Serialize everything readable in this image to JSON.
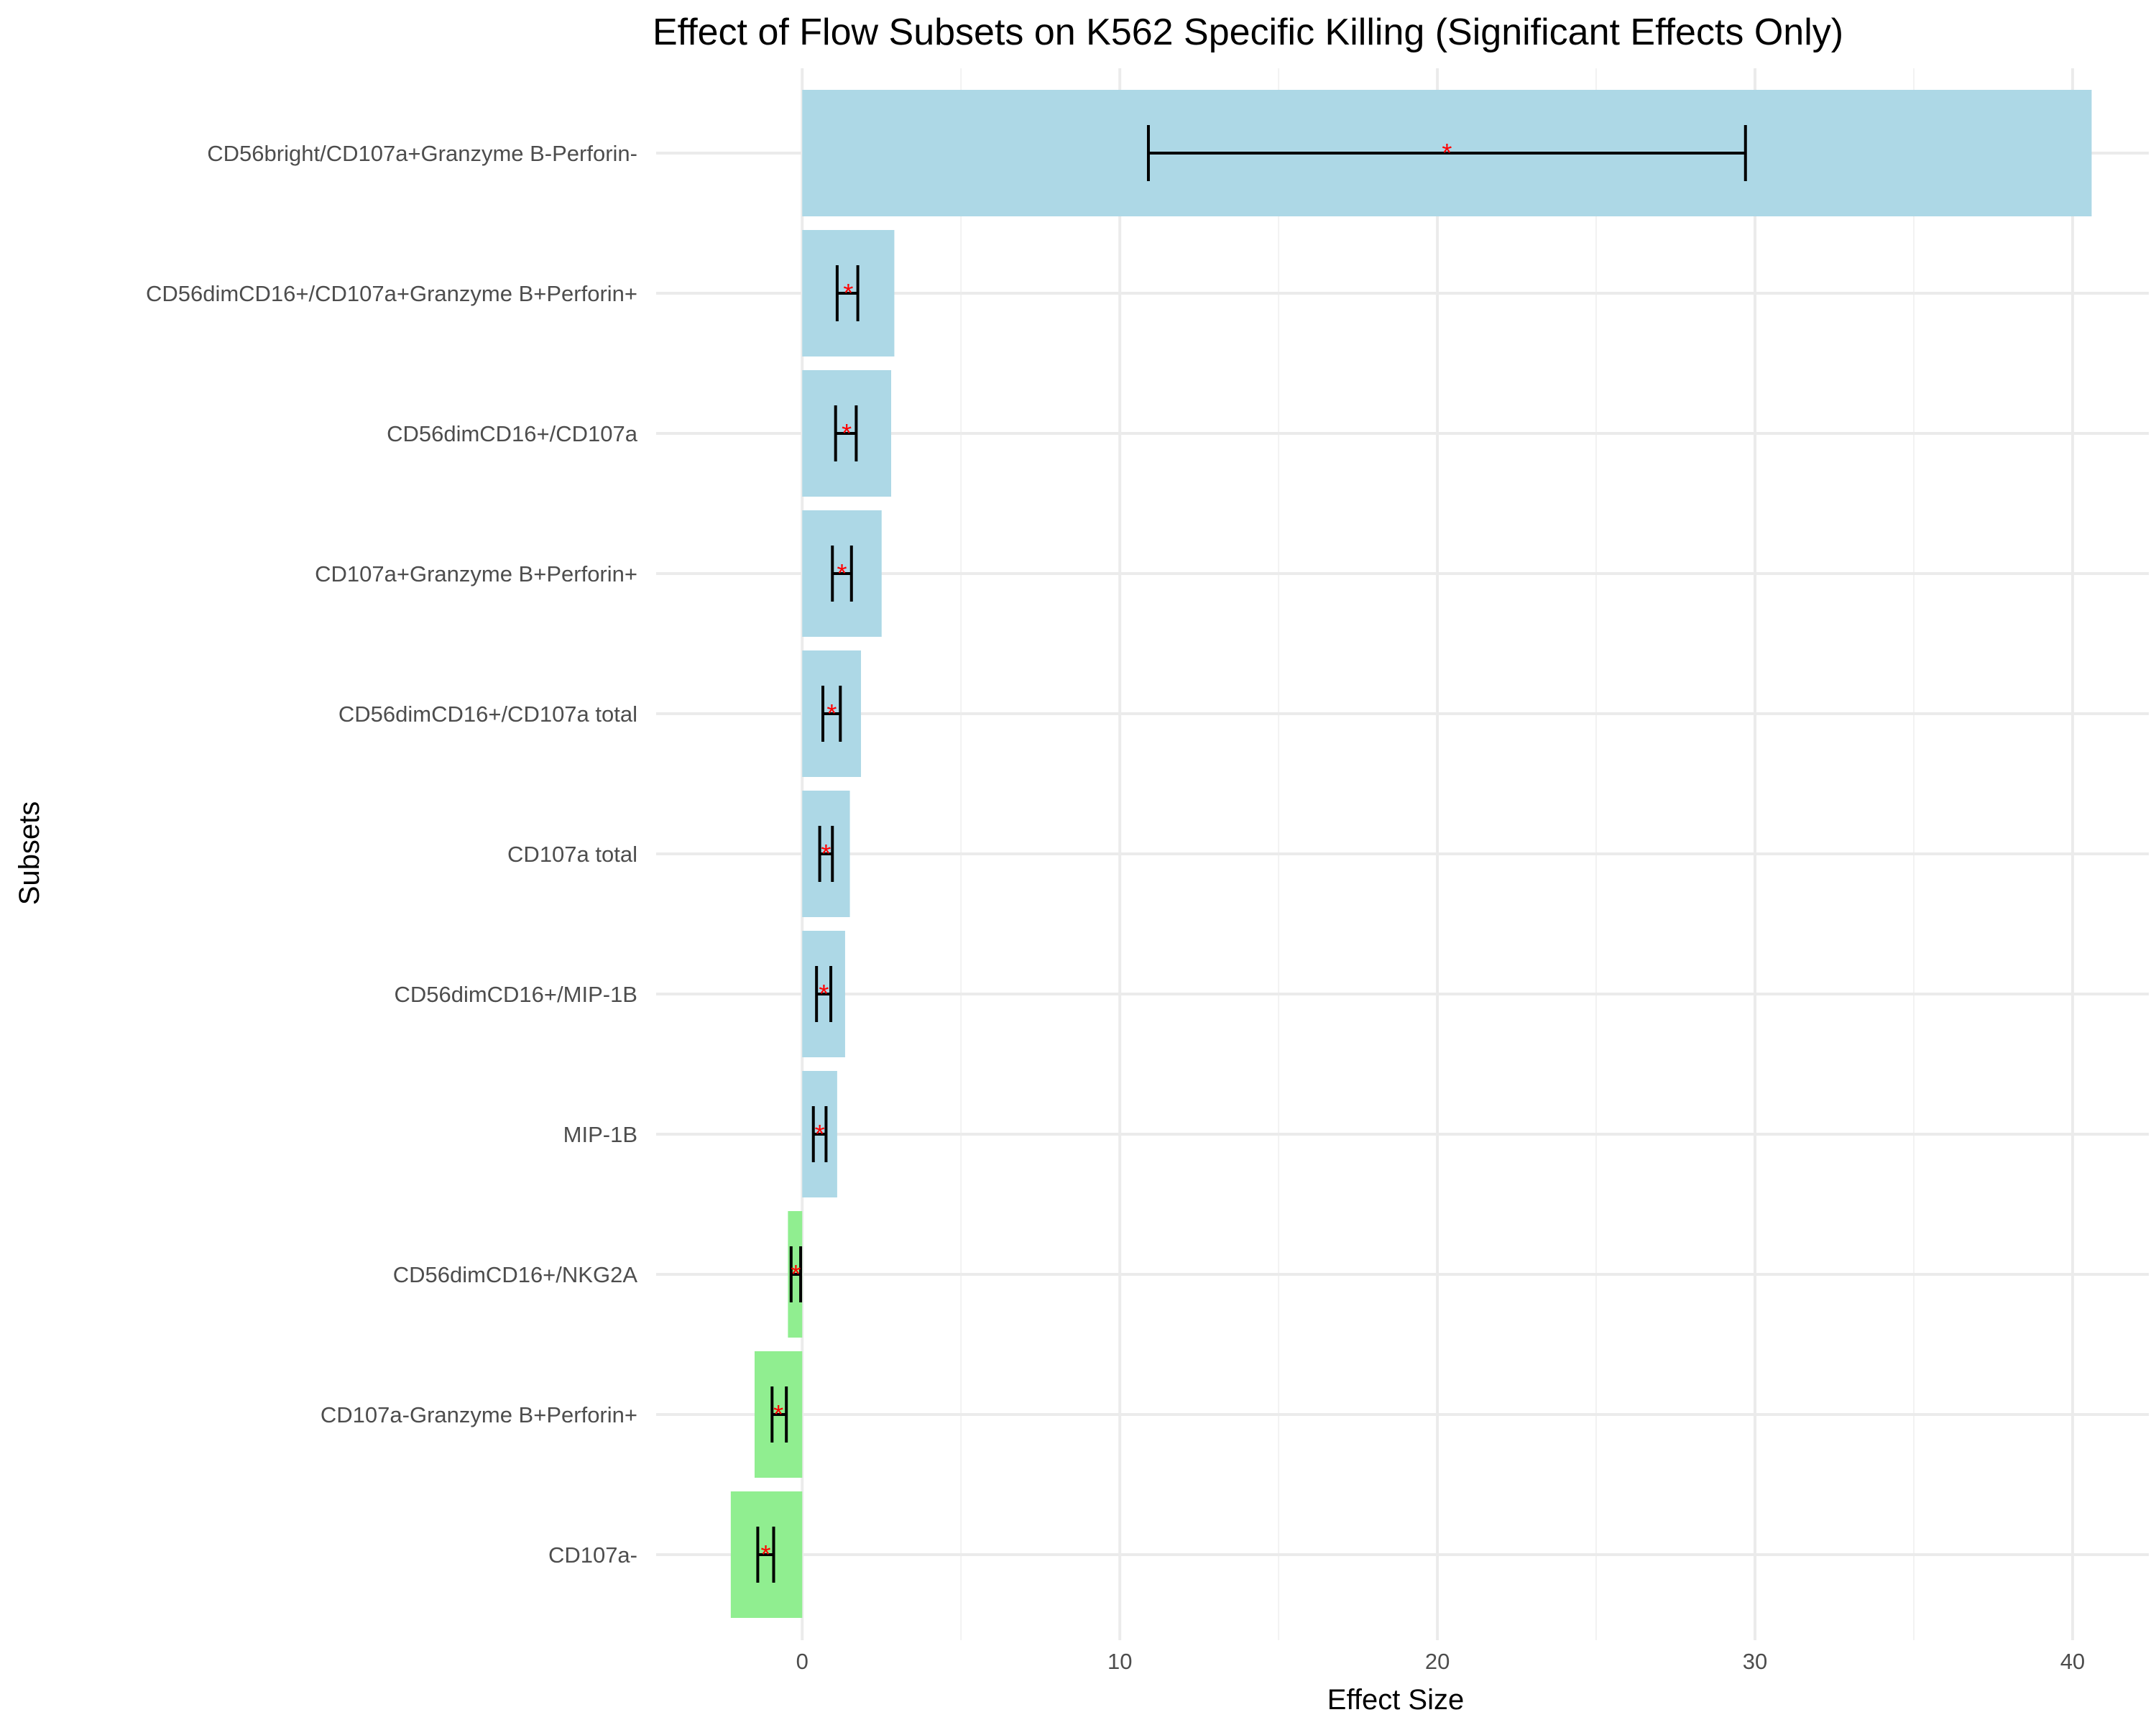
{
  "chart_data": {
    "type": "bar",
    "orientation": "horizontal",
    "title": "Effect of Flow Subsets on K562 Specific Killing (Significant Effects Only)",
    "xlabel": "Effect Size",
    "ylabel": "Subsets",
    "xlim": [
      -4.6,
      42.4
    ],
    "x_ticks": [
      0,
      10,
      20,
      30,
      40
    ],
    "grid": true,
    "legend": "none",
    "colors": {
      "positive": "#add8e6",
      "negative": "#90ee90",
      "errorbar": "#000000",
      "significance": "#ff0000"
    },
    "significance_symbol": "*",
    "categories": [
      "CD56bright/CD107a+Granzyme B-Perforin-",
      "CD56dimCD16+/CD107a+Granzyme B+Perforin+",
      "CD56dimCD16+/CD107a",
      "CD107a+Granzyme B+Perforin+",
      "CD56dimCD16+/CD107a total",
      "CD107a total",
      "CD56dimCD16+/MIP-1B",
      "MIP-1B",
      "CD56dimCD16+/NKG2A",
      "CD107a-Granzyme B+Perforin+",
      "CD107a-"
    ],
    "values": [
      40.6,
      2.9,
      2.8,
      2.5,
      1.85,
      1.5,
      1.35,
      1.1,
      -0.45,
      -1.5,
      -2.25
    ],
    "estimates": [
      20.3,
      1.45,
      1.4,
      1.25,
      0.93,
      0.75,
      0.68,
      0.55,
      -0.2,
      -0.75,
      -1.15
    ],
    "ci_low": [
      10.9,
      1.1,
      1.05,
      0.95,
      0.65,
      0.55,
      0.45,
      0.35,
      -0.35,
      -0.95,
      -1.4
    ],
    "ci_high": [
      29.7,
      1.75,
      1.7,
      1.55,
      1.2,
      0.95,
      0.9,
      0.75,
      -0.05,
      -0.5,
      -0.9
    ]
  }
}
